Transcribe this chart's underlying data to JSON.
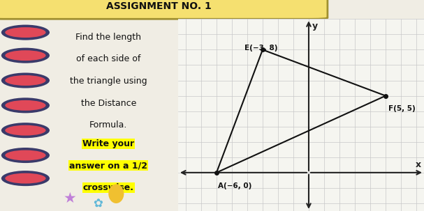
{
  "bg_color": "#f0ede4",
  "left_bg": "#f5f2ea",
  "left_stripe_bg": "#b0e8e0",
  "title_bar_color": "#f5e070",
  "title_text": "ASSIGNMENT NO. 1",
  "instruction_lines": [
    "Find the length",
    "of each side of",
    "the triangle using",
    "the Distance",
    "Formula."
  ],
  "highlight_lines": [
    "Write your",
    "answer on a 1/2",
    "crosswise."
  ],
  "highlight_color": "#ffff00",
  "ring_outer_color": "#3a3a6a",
  "ring_inner_color": "#e04858",
  "points": {
    "E": [
      -3,
      8
    ],
    "F": [
      5,
      5
    ],
    "A": [
      -6,
      0
    ]
  },
  "point_labels": {
    "E": "E(−3, 8)",
    "F": "F(5, 5)",
    "A": "A(−6, 0)"
  },
  "grid_color": "#c8c8c8",
  "axis_color": "#222222",
  "triangle_color": "#111111",
  "xlim": [
    -8.5,
    7.5
  ],
  "ylim": [
    -2.5,
    10.0
  ],
  "graph_bg": "#f5f5f0",
  "star1_color": "#c080d8",
  "star2_color": "#60b8d8",
  "circle_color": "#f0c030",
  "label_offsets": {
    "E": [
      -1.2,
      0.35
    ],
    "F": [
      0.2,
      -0.6
    ],
    "A": [
      0.1,
      -0.65
    ]
  }
}
